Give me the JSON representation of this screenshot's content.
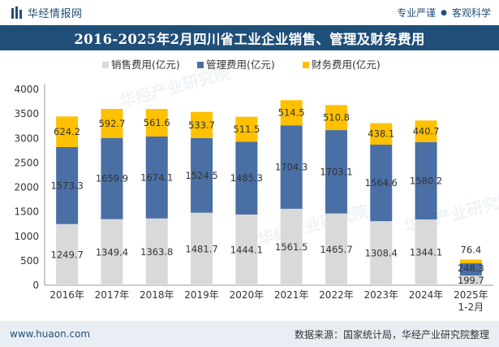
{
  "header": {
    "brand": "华经情报网",
    "tagline_left": "专业严谨",
    "tagline_right": "客观科学"
  },
  "title": "2016-2025年2月四川省工业企业销售、管理及财务费用",
  "colors": {
    "brand": "#1f4e79",
    "sales": "#d9d9d9",
    "management": "#4a6fa5",
    "finance": "#ffc000"
  },
  "watermark": "华经产业研究院",
  "chart_data": {
    "type": "bar",
    "stacked": true,
    "categories": [
      "2016年",
      "2017年",
      "2018年",
      "2019年",
      "2020年",
      "2021年",
      "2022年",
      "2023年",
      "2024年",
      "2025年\n1-2月"
    ],
    "series": [
      {
        "name": "销售费用(亿元)",
        "color": "#d9d9d9",
        "values": [
          1249.7,
          1349.4,
          1363.8,
          1481.7,
          1444.1,
          1561.5,
          1465.7,
          1308.4,
          1344.1,
          199.7
        ]
      },
      {
        "name": "管理费用(亿元)",
        "color": "#4a6fa5",
        "values": [
          1573.3,
          1659.9,
          1674.1,
          1524.5,
          1485.3,
          1704.3,
          1703.1,
          1564.6,
          1580.2,
          248.3
        ]
      },
      {
        "name": "财务费用(亿元)",
        "color": "#ffc000",
        "values": [
          624.2,
          592.7,
          561.6,
          533.7,
          511.5,
          514.5,
          510.8,
          438.1,
          440.7,
          76.4
        ]
      }
    ],
    "ylim": [
      0,
      4000
    ],
    "yticks": [
      0,
      500,
      1000,
      1500,
      2000,
      2500,
      3000,
      3500,
      4000
    ],
    "legend_position": "top-center",
    "grid": false
  },
  "footer": {
    "website": "www.huaon.com",
    "source": "数据来源：国家统计局，华经产业研究院整理"
  }
}
